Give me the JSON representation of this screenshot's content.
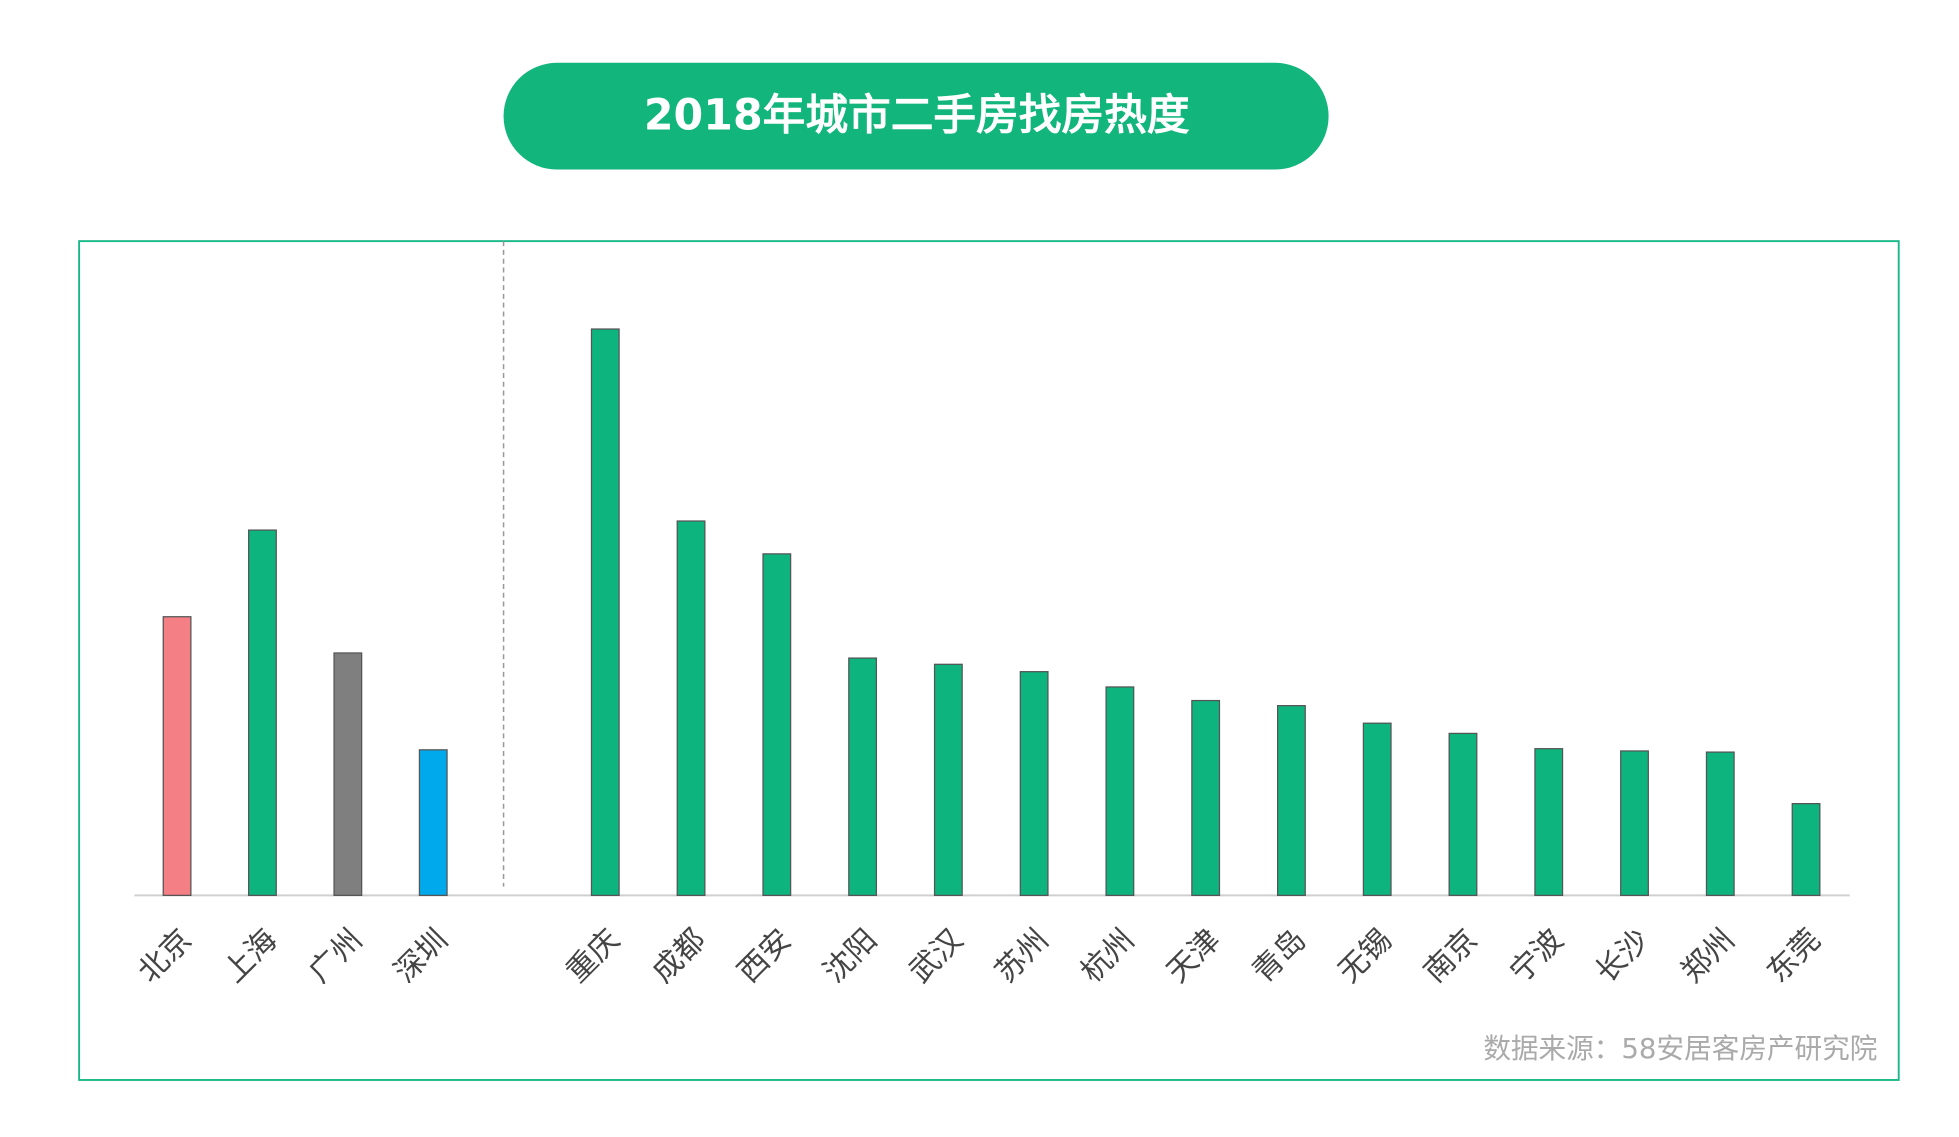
{
  "chart_data": {
    "type": "bar",
    "title": "2018年城市二手房找房热度",
    "categories": [
      "北京",
      "上海",
      "广州",
      "深圳",
      "重庆",
      "成都",
      "西安",
      "沈阳",
      "武汉",
      "苏州",
      "杭州",
      "天津",
      "青岛",
      "无锡",
      "南京",
      "宁波",
      "长沙",
      "郑州",
      "东莞"
    ],
    "values": [
      49.2,
      64.5,
      42.8,
      25.7,
      100,
      66.1,
      60.3,
      41.9,
      40.8,
      39.5,
      36.8,
      34.4,
      33.5,
      30.4,
      28.6,
      25.9,
      25.5,
      25.3,
      16.2
    ],
    "colors": [
      "#f47f85",
      "#0db47e",
      "#7f7f7f",
      "#00a8ec",
      "#0db47e",
      "#0db47e",
      "#0db47e",
      "#0db47e",
      "#0db47e",
      "#0db47e",
      "#0db47e",
      "#0db47e",
      "#0db47e",
      "#0db47e",
      "#0db47e",
      "#0db47e",
      "#0db47e",
      "#0db47e",
      "#0db47e"
    ],
    "ylim": [
      0,
      100
    ],
    "source": "数据来源：58安居客房产研究院"
  }
}
